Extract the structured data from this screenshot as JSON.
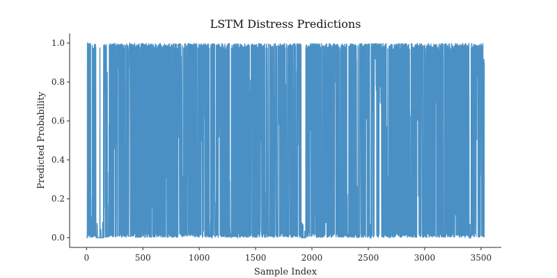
{
  "chart_data": {
    "type": "line",
    "title": "LSTM Distress Predictions",
    "xlabel": "Sample Index",
    "ylabel": "Predicted Probability",
    "xlim": [
      -150,
      3680
    ],
    "ylim": [
      -0.05,
      1.05
    ],
    "x_ticks": [
      0,
      500,
      1000,
      1500,
      2000,
      2500,
      3000,
      3500
    ],
    "x_tick_labels": [
      "0",
      "500",
      "1000",
      "1500",
      "2000",
      "2500",
      "3000",
      "3500"
    ],
    "y_ticks": [
      0.0,
      0.2,
      0.4,
      0.6,
      0.8,
      1.0
    ],
    "y_tick_labels": [
      "0.0",
      "0.2",
      "0.4",
      "0.6",
      "0.8",
      "1.0"
    ],
    "grid": false,
    "legend": "none",
    "series": [
      {
        "color": "#4a90c4",
        "sample_count": 3530,
        "values_range": [
          0.0,
          1.0
        ],
        "pattern": "rapidly alternating between ~0 and ~1",
        "description_points": [
          [
            0,
            0.0
          ],
          [
            5,
            0.07
          ],
          [
            10,
            1.0
          ],
          [
            20,
            0.0
          ],
          [
            30,
            1.0
          ],
          [
            45,
            0.0
          ],
          [
            60,
            0.99
          ],
          [
            80,
            0.87
          ],
          [
            100,
            0.05
          ],
          [
            130,
            0.99
          ],
          [
            160,
            0.05
          ],
          [
            180,
            1.0
          ],
          [
            210,
            0.0
          ],
          [
            240,
            1.0
          ],
          [
            280,
            0.0
          ],
          [
            320,
            0.99
          ],
          [
            360,
            0.0
          ],
          [
            400,
            1.0
          ],
          [
            450,
            0.0
          ],
          [
            480,
            0.48
          ],
          [
            500,
            1.0
          ],
          [
            550,
            0.0
          ],
          [
            600,
            0.99
          ],
          [
            650,
            0.0
          ],
          [
            700,
            1.0
          ],
          [
            750,
            0.0
          ],
          [
            800,
            1.0
          ],
          [
            850,
            0.0
          ],
          [
            880,
            0.99
          ],
          [
            920,
            0.0
          ],
          [
            960,
            1.0
          ],
          [
            1000,
            0.0
          ],
          [
            1040,
            0.99
          ],
          [
            1080,
            0.0
          ],
          [
            1120,
            1.0
          ],
          [
            1160,
            0.0
          ],
          [
            1200,
            1.0
          ],
          [
            1250,
            0.0
          ],
          [
            1300,
            0.99
          ],
          [
            1340,
            0.0
          ],
          [
            1380,
            1.0
          ],
          [
            1420,
            0.0
          ],
          [
            1460,
            0.99
          ],
          [
            1500,
            0.0
          ],
          [
            1550,
            1.0
          ],
          [
            1600,
            0.0
          ],
          [
            1650,
            0.99
          ],
          [
            1700,
            0.0
          ],
          [
            1750,
            1.0
          ],
          [
            1800,
            0.0
          ],
          [
            1850,
            0.99
          ],
          [
            1900,
            0.0
          ],
          [
            1950,
            1.0
          ],
          [
            2000,
            0.0
          ],
          [
            2050,
            0.99
          ],
          [
            2100,
            0.0
          ],
          [
            2150,
            1.0
          ],
          [
            2200,
            0.0
          ],
          [
            2250,
            0.99
          ],
          [
            2300,
            0.0
          ],
          [
            2350,
            1.0
          ],
          [
            2400,
            0.0
          ],
          [
            2450,
            0.99
          ],
          [
            2500,
            0.0
          ],
          [
            2550,
            1.0
          ],
          [
            2600,
            0.0
          ],
          [
            2650,
            0.99
          ],
          [
            2700,
            0.0
          ],
          [
            2750,
            1.0
          ],
          [
            2800,
            0.0
          ],
          [
            2850,
            0.99
          ],
          [
            2900,
            0.0
          ],
          [
            2950,
            1.0
          ],
          [
            3000,
            0.0
          ],
          [
            3050,
            0.99
          ],
          [
            3100,
            0.0
          ],
          [
            3150,
            1.0
          ],
          [
            3200,
            0.0
          ],
          [
            3250,
            0.99
          ],
          [
            3300,
            0.0
          ],
          [
            3350,
            1.0
          ],
          [
            3400,
            0.0
          ],
          [
            3450,
            0.99
          ],
          [
            3500,
            0.0
          ],
          [
            3530,
            0.9
          ]
        ]
      }
    ]
  }
}
